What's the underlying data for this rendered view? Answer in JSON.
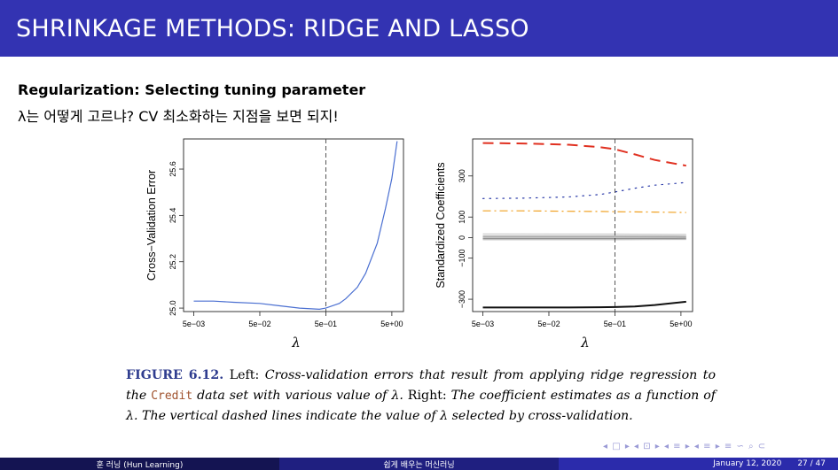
{
  "slide": {
    "title": "SHRINKAGE METHODS: RIDGE AND LASSO",
    "heading": "Regularization: Selecting tuning parameter",
    "subline": "λ는 어떻게 고르냐? CV 최소화하는 지점을 보면 되지!"
  },
  "chart_data": [
    {
      "type": "line",
      "xlabel": "λ",
      "ylabel": "Cross−Validation Error",
      "x_scale": "log",
      "x_ticks": [
        "5e−03",
        "5e−02",
        "5e−01",
        "5e+00"
      ],
      "y_ticks": [
        "25.0",
        "25.2",
        "25.4",
        "25.6"
      ],
      "selected_lambda": 0.5,
      "series": [
        {
          "x": [
            0.005,
            0.01,
            0.02,
            0.05,
            0.1,
            0.2,
            0.4,
            0.5,
            0.8,
            1,
            1.5,
            2,
            3,
            4,
            5,
            6
          ],
          "y": [
            25.03,
            25.03,
            25.025,
            25.02,
            25.01,
            25.0,
            24.995,
            25.0,
            25.02,
            25.04,
            25.09,
            25.15,
            25.28,
            25.43,
            25.56,
            25.72
          ],
          "color": "#4a6fd1"
        }
      ]
    },
    {
      "type": "line",
      "xlabel": "λ",
      "ylabel": "Standardized Coefficients",
      "x_scale": "log",
      "x_ticks": [
        "5e−03",
        "5e−02",
        "5e−01",
        "5e+00"
      ],
      "y_ticks": [
        "−300",
        "−100",
        "0",
        "100",
        "300"
      ],
      "selected_lambda": 0.5,
      "series": [
        {
          "x": [
            0.005,
            0.02,
            0.1,
            0.3,
            0.5,
            1,
            2,
            6
          ],
          "y": [
            460,
            458,
            452,
            440,
            430,
            405,
            378,
            350
          ],
          "style": "dashed",
          "color": "#e03020"
        },
        {
          "x": [
            0.005,
            0.02,
            0.1,
            0.3,
            0.5,
            1,
            2,
            6
          ],
          "y": [
            190,
            192,
            198,
            210,
            222,
            240,
            255,
            268
          ],
          "style": "dotted",
          "color": "#2a3aa8"
        },
        {
          "x": [
            0.005,
            0.02,
            0.1,
            0.3,
            0.5,
            1,
            2,
            6
          ],
          "y": [
            130,
            130,
            128,
            127,
            126,
            125,
            124,
            122
          ],
          "style": "dashdot",
          "color": "#f0a020"
        },
        {
          "x": [
            0.005,
            0.5,
            6
          ],
          "y": [
            18,
            17,
            15
          ],
          "style": "solid",
          "color": "#c8c8c8"
        },
        {
          "x": [
            0.005,
            0.5,
            6
          ],
          "y": [
            8,
            8,
            7
          ],
          "style": "solid",
          "color": "#b0b0b0"
        },
        {
          "x": [
            0.005,
            0.5,
            6
          ],
          "y": [
            2,
            2,
            2
          ],
          "style": "solid",
          "color": "#a0a0a0"
        },
        {
          "x": [
            0.005,
            0.5,
            6
          ],
          "y": [
            -5,
            -5,
            -4
          ],
          "style": "solid",
          "color": "#909090"
        },
        {
          "x": [
            0.005,
            0.5,
            6
          ],
          "y": [
            -10,
            -10,
            -9
          ],
          "style": "solid",
          "color": "#bdbdbd"
        },
        {
          "x": [
            0.005,
            0.02,
            0.1,
            0.3,
            0.5,
            1,
            2,
            6
          ],
          "y": [
            -340,
            -340,
            -340,
            -339,
            -338,
            -335,
            -328,
            -312
          ],
          "style": "solid",
          "color": "#111111"
        }
      ]
    }
  ],
  "caption": {
    "label": "FIGURE 6.12.",
    "w1": "Left:",
    "t1": "Cross-validation errors that result from applying ridge regression to the",
    "code": "Credit",
    "t2": "data set with various value of λ.",
    "w2": "Right:",
    "t3": "The coefficient estimates as a function of λ. The vertical dashed lines indicate the value of λ selected by cross-validation."
  },
  "nav": {
    "symbols": "◂ □ ▸ ◂ ⊡ ▸ ◂ ≡ ▸ ◂ ≡ ▸   ≡   ∽ ⌕ ⊂"
  },
  "footer": {
    "author": "훈 러닝 (Hun Learning)",
    "course": "쉽게 배우는 머신러닝",
    "date": "January 12, 2020",
    "page": "27 / 47"
  },
  "colors": {
    "title_bar": "#3333b2",
    "footer_dark": "#141452",
    "footer_mid": "#1f1f80",
    "footer_light": "#2b2bab"
  }
}
